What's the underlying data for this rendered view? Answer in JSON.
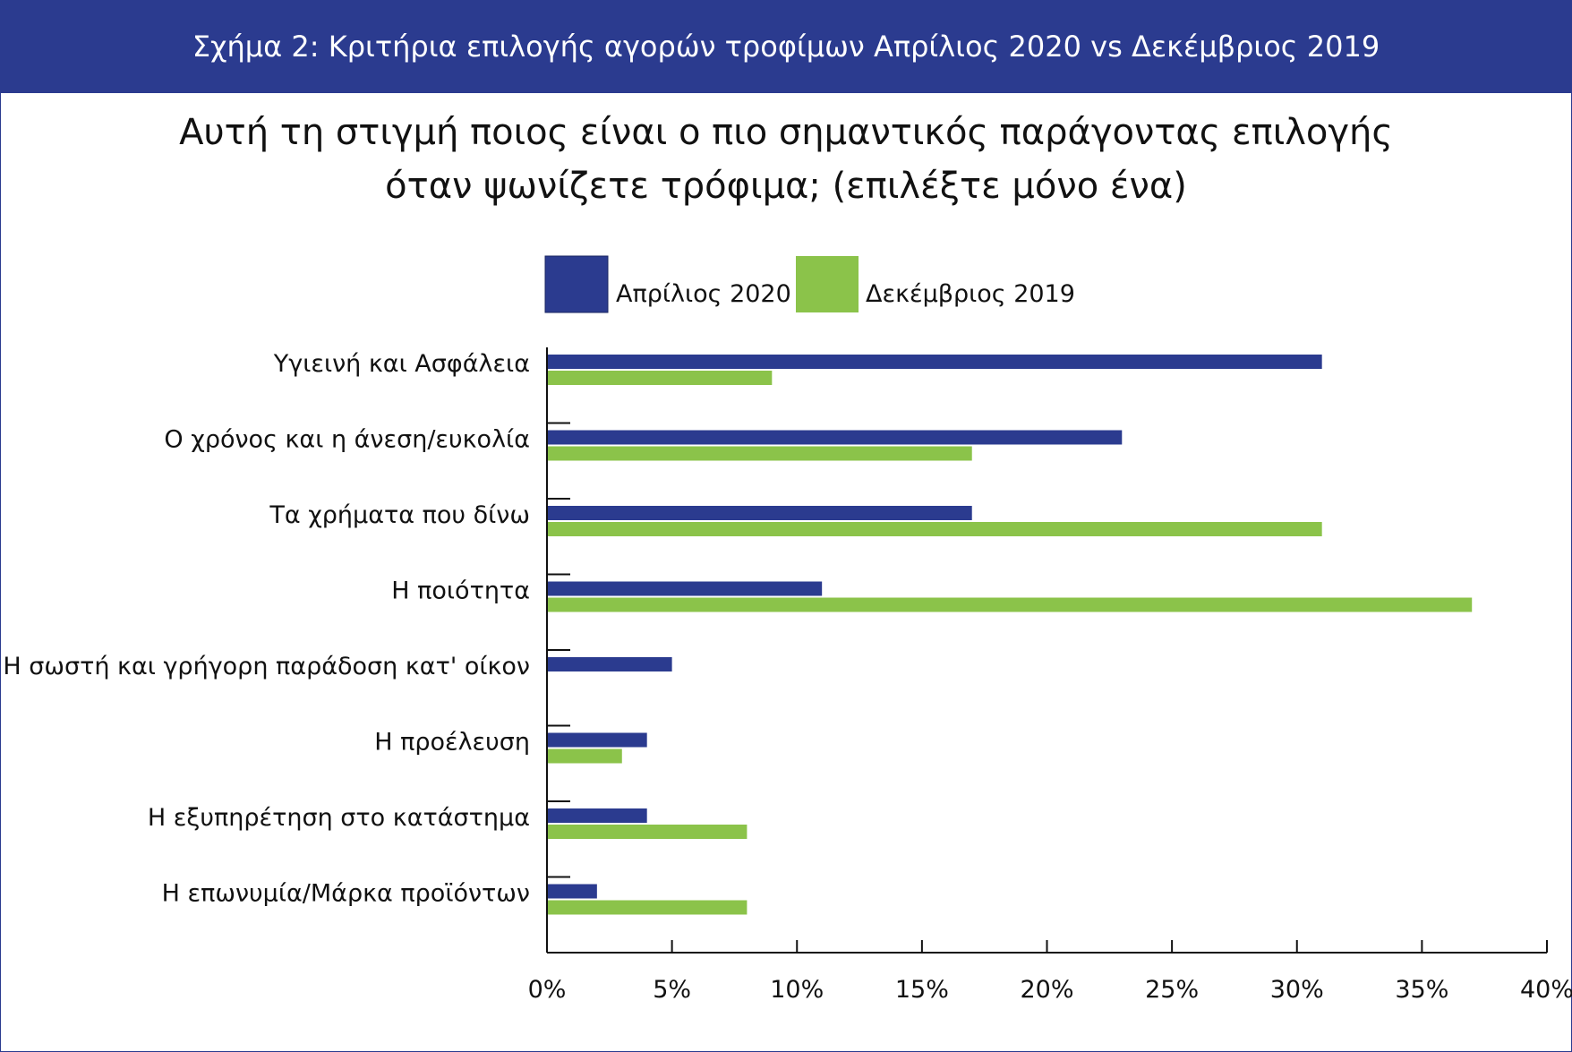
{
  "header": {
    "title": "Σχήμα 2: Κριτήρια επιλογής αγορών τροφίμων Απρίλιος 2020 vs Δεκέμβριος 2019"
  },
  "chart_title": {
    "line1": "Αυτή τη στιγμή ποιος είναι ο πιο σημαντικός παράγοντας επιλογής",
    "line2": "όταν ψωνίζετε τρόφιμα; (επιλέξτε μόνο ένα)"
  },
  "chart_data": {
    "type": "bar",
    "orientation": "horizontal",
    "title": "Αυτή τη στιγμή ποιος είναι ο πιο σημαντικός παράγοντας επιλογής όταν ψωνίζετε τρόφιμα; (επιλέξτε μόνο ένα)",
    "categories": [
      "Υγιεινή και Ασφάλεια",
      "Ο χρόνος και η άνεση/ευκολία",
      "Τα χρήματα που δίνω",
      "Η ποιότητα",
      "Η σωστή και γρήγορη παράδοση κατ' οίκον",
      "Η προέλευση",
      "Η εξυπηρέτηση στο κατάστημα",
      "Η επωνυμία/Μάρκα προϊόντων"
    ],
    "series": [
      {
        "name": "Απρίλιος 2020",
        "color": "#2b3b8f",
        "values": [
          31,
          23,
          17,
          11,
          5,
          4,
          4,
          2
        ]
      },
      {
        "name": "Δεκέμβριος 2019",
        "color": "#8bc34a",
        "values": [
          9,
          17,
          31,
          37,
          0,
          3,
          8,
          8
        ]
      }
    ],
    "xlim": [
      0,
      40
    ],
    "xticks": [
      "0%",
      "5%",
      "10%",
      "15%",
      "20%",
      "25%",
      "30%",
      "35%",
      "40%"
    ],
    "xlabel": "",
    "ylabel": "",
    "grid": false,
    "legend_position": "top"
  }
}
